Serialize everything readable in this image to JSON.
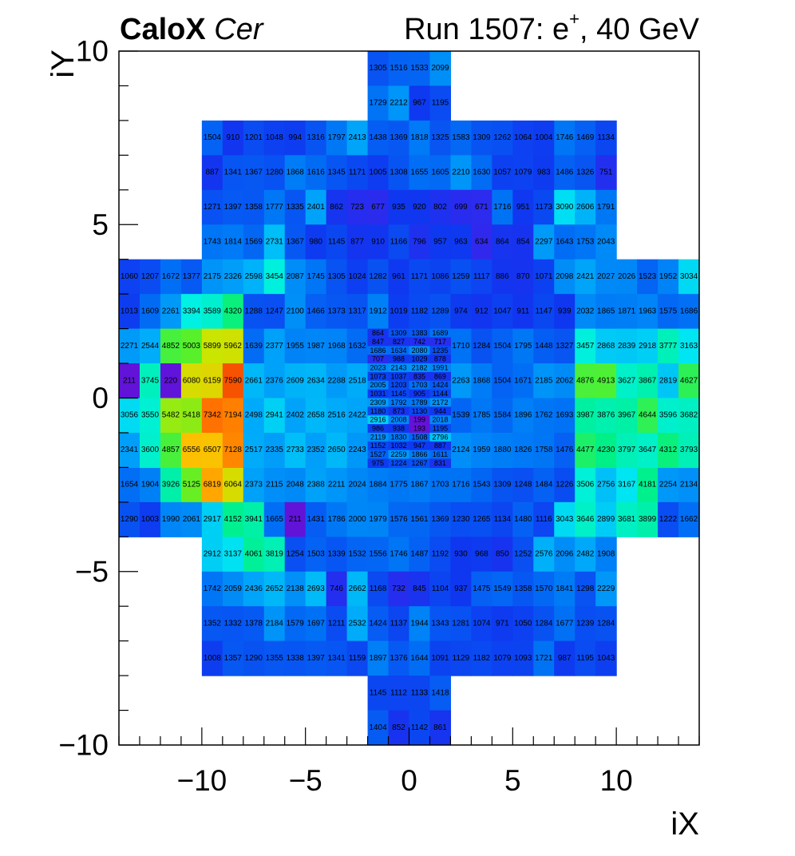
{
  "header": {
    "brand": "CaloX",
    "mode": "Cer",
    "run_prefix": "Run 1507: e",
    "charge": "+",
    "run_suffix": ", 40 GeV"
  },
  "chart_data": {
    "type": "heatmap",
    "title": "",
    "xlabel": "iX",
    "ylabel": "iY",
    "xlim": [
      -14,
      14
    ],
    "ylim": [
      -10,
      10
    ],
    "x_ticks": [
      "−10",
      "−5",
      "0",
      "5",
      "10"
    ],
    "y_ticks": [
      "−10",
      "−5",
      "0",
      "5",
      "10"
    ],
    "x_tick_values": [
      -10,
      -5,
      0,
      5,
      10
    ],
    "y_tick_values": [
      -10,
      -5,
      0,
      5,
      10
    ],
    "z_range": [
      150,
      8000
    ],
    "colormap": "rainbow (blue-violet low → red high)",
    "grid": false,
    "legend": "none",
    "outer_rows": [
      {
        "y": 9,
        "x_start": -2,
        "values": [
          1305,
          1516,
          1533,
          2099
        ]
      },
      {
        "y": 8,
        "x_start": -2,
        "values": [
          1729,
          2212,
          967,
          1195
        ]
      },
      {
        "y": 7,
        "x_start": -10,
        "values": [
          1504,
          910,
          1201,
          1048,
          994,
          1316,
          1797,
          2413,
          1438,
          1369,
          1818,
          1325,
          1583,
          1309,
          1262,
          1064,
          1004,
          1746,
          1469,
          1134
        ]
      },
      {
        "y": 6,
        "x_start": -10,
        "values": [
          887,
          1341,
          1367,
          1280,
          1868,
          1616,
          1345,
          1171,
          1005,
          1308,
          1655,
          1605,
          2210,
          1630,
          1057,
          1079,
          983,
          1486,
          1326,
          751
        ]
      },
      {
        "y": 5,
        "x_start": -10,
        "values": [
          1271,
          1397,
          1358,
          1777,
          1335,
          2401,
          862,
          723,
          677,
          935,
          920,
          802,
          699,
          671,
          1716,
          951,
          1173,
          3090,
          2606,
          1791
        ]
      },
      {
        "y": 4,
        "x_start": -10,
        "values": [
          1743,
          1814,
          1569,
          2731,
          1367,
          980,
          1145,
          877,
          910,
          1166,
          796,
          957,
          963,
          634,
          864,
          854,
          2297,
          1643,
          1753,
          2043
        ]
      },
      {
        "y": 3,
        "x_start": -14,
        "values": [
          1060,
          1207,
          1672,
          1377,
          2175,
          2326,
          2598,
          3454,
          2087,
          1745,
          1305,
          1024,
          1282,
          961,
          1171,
          1086,
          1259,
          1117,
          886,
          870,
          1071,
          2098,
          2421,
          2027,
          2026,
          1523,
          1952,
          3034
        ]
      },
      {
        "y": 2,
        "x_start": -14,
        "values": [
          1013,
          1609,
          2261,
          3394,
          3589,
          4320,
          1288,
          1247,
          2100,
          1466,
          1373,
          1317,
          1912,
          1019,
          1182,
          1289,
          974,
          912,
          1047,
          911,
          1147,
          939,
          2032,
          1865,
          1871,
          1963,
          1575,
          1686
        ]
      },
      {
        "y": -3,
        "x_start": -14,
        "values": [
          1654,
          1904,
          3926,
          5125,
          6819,
          6064,
          2373,
          2115,
          2048,
          2388,
          2211,
          2024,
          1884,
          1775,
          1867,
          1703,
          1716,
          1543,
          1309,
          1248,
          1484,
          1226,
          3506,
          2756,
          3167,
          4181,
          2254,
          2134
        ]
      },
      {
        "y": -4,
        "x_start": -14,
        "values": [
          1290,
          1003,
          1990,
          2061,
          2917,
          4152,
          3941,
          1665,
          211,
          1431,
          1786,
          2000,
          1979,
          1576,
          1561,
          1369,
          1230,
          1265,
          1134,
          1480,
          1116,
          3043,
          3646,
          2899,
          3681,
          3899,
          1222,
          1662
        ]
      },
      {
        "y": -5,
        "x_start": -10,
        "values": [
          2912,
          3137,
          4061,
          3819,
          1254,
          1503,
          1339,
          1532,
          1556,
          1746,
          1487,
          1192,
          930,
          968,
          850,
          1252,
          2576,
          2096,
          2482,
          1908
        ]
      },
      {
        "y": -6,
        "x_start": -10,
        "values": [
          1742,
          2059,
          2436,
          2652,
          2138,
          2693,
          746,
          2662,
          1168,
          732,
          845,
          1104,
          937,
          1475,
          1549,
          1358,
          1570,
          1841,
          1298,
          2229
        ]
      },
      {
        "y": -7,
        "x_start": -10,
        "values": [
          1352,
          1332,
          1378,
          2184,
          1579,
          1697,
          1211,
          2532,
          1424,
          1137,
          1944,
          1343,
          1281,
          1074,
          971,
          1050,
          1284,
          1677,
          1239,
          1284
        ]
      },
      {
        "y": -8,
        "x_start": -10,
        "values": [
          1008,
          1357,
          1290,
          1355,
          1338,
          1397,
          1341,
          1159,
          1897,
          1376,
          1644,
          1091,
          1129,
          1182,
          1079,
          1093,
          1721,
          987,
          1195,
          1043
        ]
      },
      {
        "y": -9,
        "x_start": -2,
        "values": [
          1145,
          1112,
          1133,
          1418
        ]
      },
      {
        "y": -10,
        "x_start": -2,
        "values": [
          1404,
          852,
          1142,
          861
        ]
      }
    ],
    "band_rows": [
      {
        "y": 1,
        "left": [
          2271,
          2544,
          4852,
          5003,
          5899,
          5962,
          1639,
          2377,
          1955,
          1987,
          1968,
          1632
        ],
        "right": [
          1710,
          1284,
          1504,
          1795,
          1448,
          1327,
          3457,
          2868,
          2839,
          2918,
          3777,
          3163
        ]
      },
      {
        "y": 0,
        "left": [
          211,
          3745,
          220,
          6080,
          6159,
          7590,
          2661,
          2376,
          2609,
          2634,
          2288,
          2518
        ],
        "right": [
          2263,
          1868,
          1504,
          1671,
          2185,
          2062,
          4876,
          4913,
          3627,
          3867,
          2819,
          4627
        ]
      },
      {
        "y": -1,
        "left": [
          3056,
          3550,
          5482,
          5418,
          7342,
          7194,
          2498,
          2941,
          2402,
          2658,
          2516,
          2422
        ],
        "right": [
          1539,
          1785,
          1584,
          1896,
          1762,
          1693,
          3987,
          3876,
          3967,
          4644,
          3596,
          3682
        ]
      },
      {
        "y": -2,
        "left": [
          2341,
          3600,
          4857,
          6556,
          6507,
          7128,
          2517,
          2335,
          2733,
          2352,
          2650,
          2243
        ],
        "right": [
          2124,
          1959,
          1880,
          1826,
          1758,
          1476,
          4477,
          4230,
          3797,
          3647,
          4312,
          3793
        ]
      }
    ],
    "fine_rows": [
      {
        "y_top": 2.0,
        "y_bottom": 1.75,
        "values": [
          864,
          1309,
          1383,
          1689
        ]
      },
      {
        "y_top": 1.75,
        "y_bottom": 1.5,
        "values": [
          847,
          827,
          742,
          717
        ]
      },
      {
        "y_top": 1.5,
        "y_bottom": 1.25,
        "values": [
          1686,
          1634,
          2080,
          1235
        ]
      },
      {
        "y_top": 1.25,
        "y_bottom": 1.0,
        "values": [
          707,
          988,
          1029,
          878
        ]
      },
      {
        "y_top": 1.0,
        "y_bottom": 0.75,
        "values": [
          2023,
          2143,
          2182,
          1991
        ]
      },
      {
        "y_top": 0.75,
        "y_bottom": 0.5,
        "values": [
          1073,
          1037,
          835,
          869
        ]
      },
      {
        "y_top": 0.5,
        "y_bottom": 0.25,
        "values": [
          2005,
          1203,
          1703,
          1424
        ]
      },
      {
        "y_top": 0.25,
        "y_bottom": 0.0,
        "values": [
          1031,
          1145,
          905,
          1144
        ]
      },
      {
        "y_top": 0.0,
        "y_bottom": -0.25,
        "values": [
          2309,
          1792,
          1789,
          2172
        ]
      },
      {
        "y_top": -0.25,
        "y_bottom": -0.5,
        "values": [
          1180,
          873,
          1130,
          944
        ]
      },
      {
        "y_top": -0.5,
        "y_bottom": -0.75,
        "values": [
          2916,
          2008,
          199,
          2018
        ]
      },
      {
        "y_top": -0.75,
        "y_bottom": -1.0,
        "values": [
          986,
          938,
          193,
          1195
        ]
      },
      {
        "y_top": -1.0,
        "y_bottom": -1.25,
        "values": [
          2119,
          1830,
          1508,
          2796
        ]
      },
      {
        "y_top": -1.25,
        "y_bottom": -1.5,
        "values": [
          1152,
          1032,
          947,
          887
        ]
      },
      {
        "y_top": -1.5,
        "y_bottom": -1.75,
        "values": [
          1527,
          2259,
          1866,
          1611
        ]
      },
      {
        "y_top": -1.75,
        "y_bottom": -2.0,
        "values": [
          975,
          1224,
          1267,
          831
        ]
      }
    ]
  }
}
